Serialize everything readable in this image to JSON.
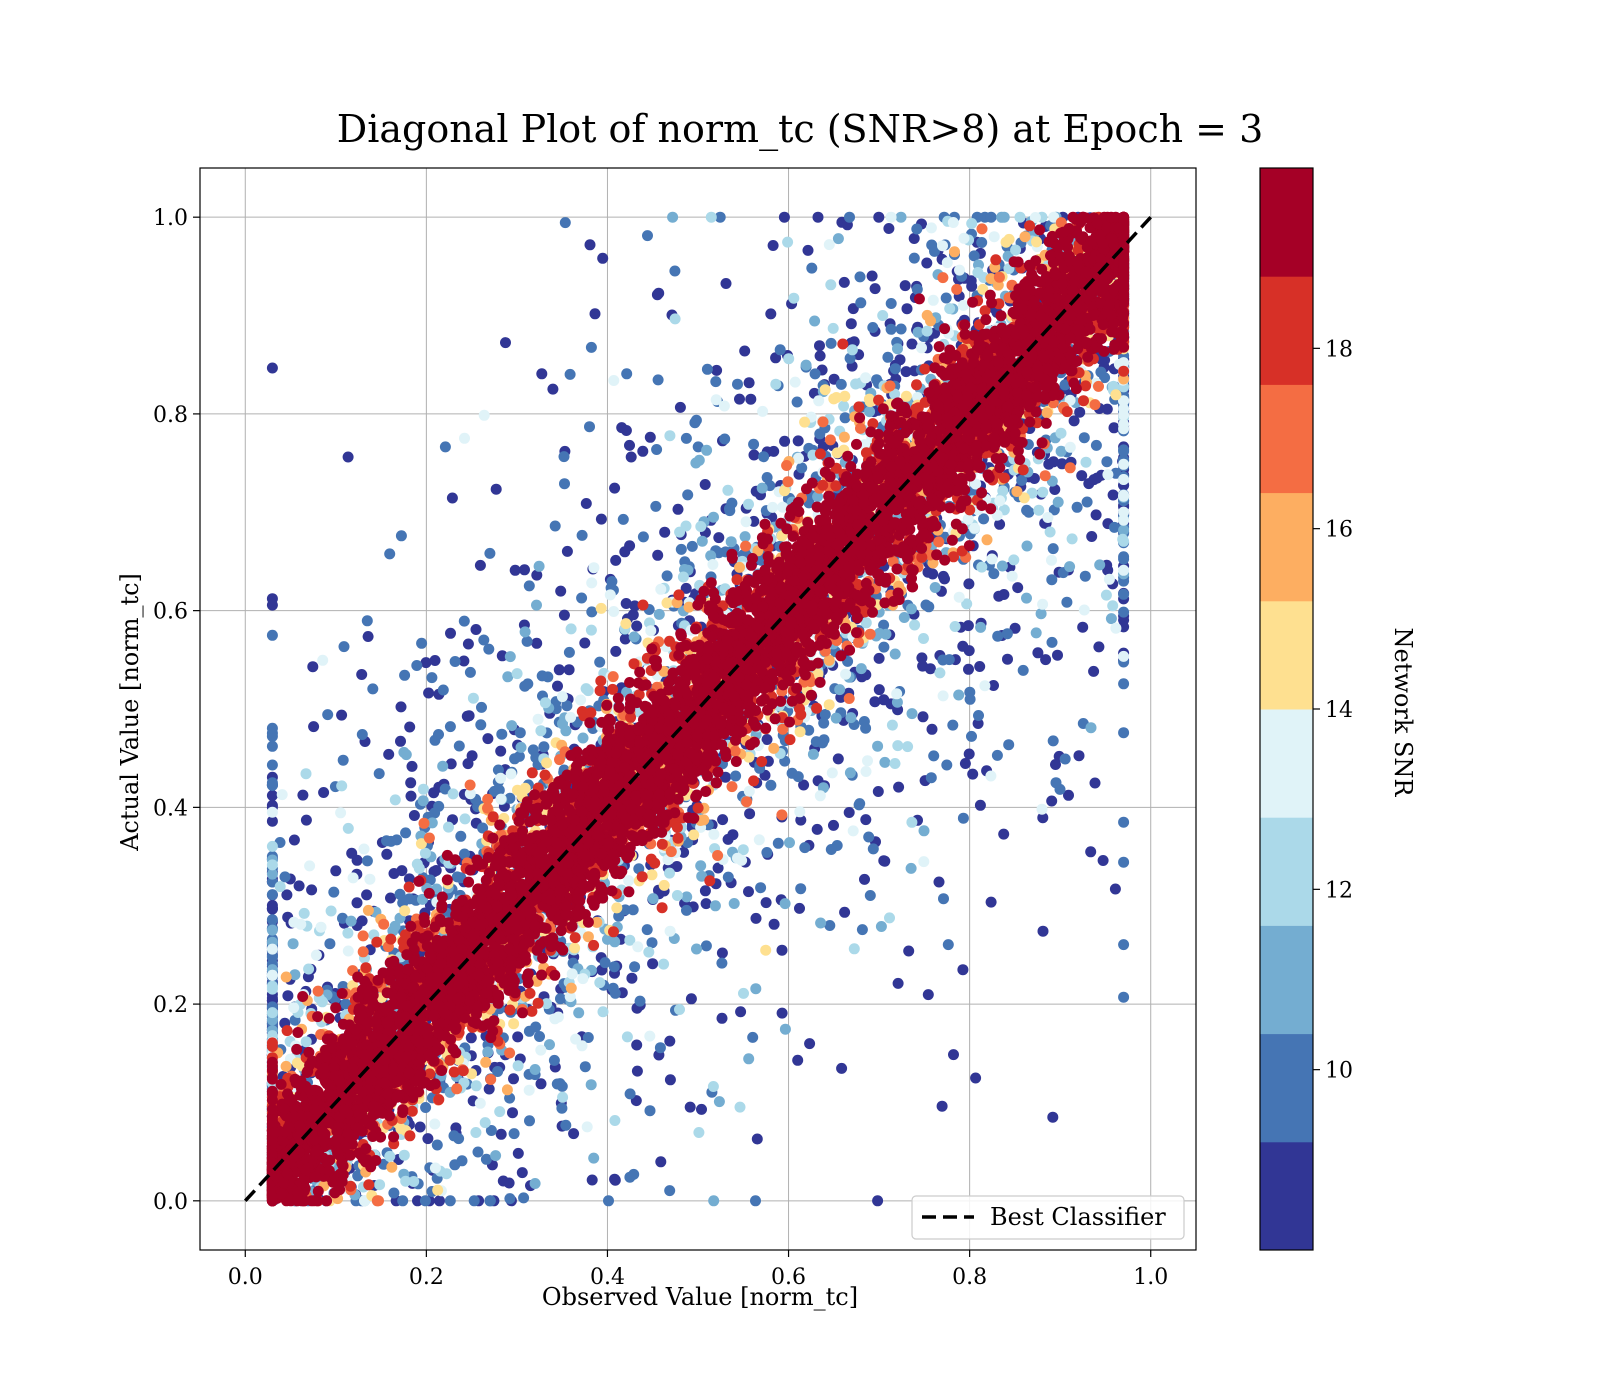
{
  "chart_data": {
    "type": "scatter",
    "title": "Diagonal Plot of norm_tc (SNR>8) at Epoch = 3",
    "xlabel": "Observed Value [norm_tc]",
    "ylabel": "Actual Value [norm_tc]",
    "xlim": [
      -0.05,
      1.05
    ],
    "ylim": [
      -0.05,
      1.05
    ],
    "xticks": [
      "0.0",
      "0.2",
      "0.4",
      "0.6",
      "0.8",
      "1.0"
    ],
    "yticks": [
      "0.0",
      "0.2",
      "0.4",
      "0.6",
      "0.8",
      "1.0"
    ],
    "grid": true,
    "legend": {
      "position": "lower-right",
      "entries": [
        "Best Classifier"
      ]
    },
    "reference_line": {
      "name": "Best Classifier",
      "style": "dashed",
      "color": "#000000",
      "x": [
        0.0,
        1.0
      ],
      "y": [
        0.0,
        1.0
      ]
    },
    "colorbar": {
      "label": "Network SNR",
      "range": [
        8,
        20
      ],
      "ticks": [
        "10",
        "12",
        "14",
        "16",
        "18"
      ],
      "colors": [
        "#313695",
        "#4575b4",
        "#74add1",
        "#abd9e9",
        "#e0f3f8",
        "#fee090",
        "#fdae61",
        "#f46d43",
        "#d73027",
        "#a50026"
      ]
    },
    "series_summary": {
      "description": "dense cloud along diagonal; high SNR (red) tightly concentrated on the diagonal, low SNR (blue) scattered further away",
      "x_range": [
        0.03,
        0.97
      ],
      "y_range": [
        0.0,
        1.0
      ]
    }
  }
}
